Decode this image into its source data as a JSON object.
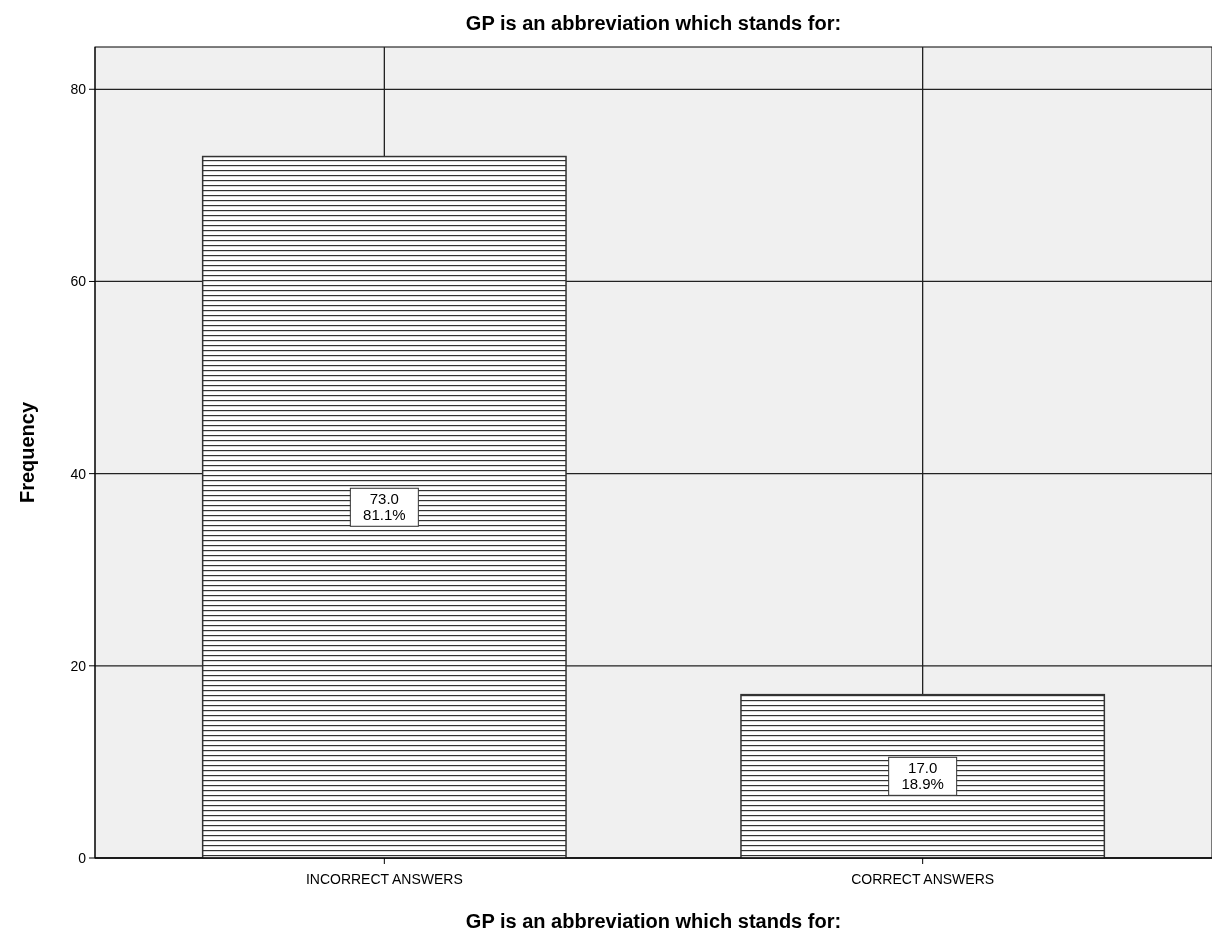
{
  "chart_data": {
    "type": "bar",
    "title": "GP is an abbreviation which stands for:",
    "xlabel": "GP is an abbreviation which stands for:",
    "ylabel": "Frequency",
    "categories": [
      "INCORRECT ANSWERS",
      "CORRECT ANSWERS"
    ],
    "values": [
      73,
      17
    ],
    "color": "#333333",
    "value_labels": [
      "73.0\n81.1%",
      "17.0\n18.9%"
    ],
    "ylim": [
      0,
      84.4
    ],
    "yticks": [
      0,
      20,
      40,
      60,
      80
    ],
    "grid": true
  }
}
